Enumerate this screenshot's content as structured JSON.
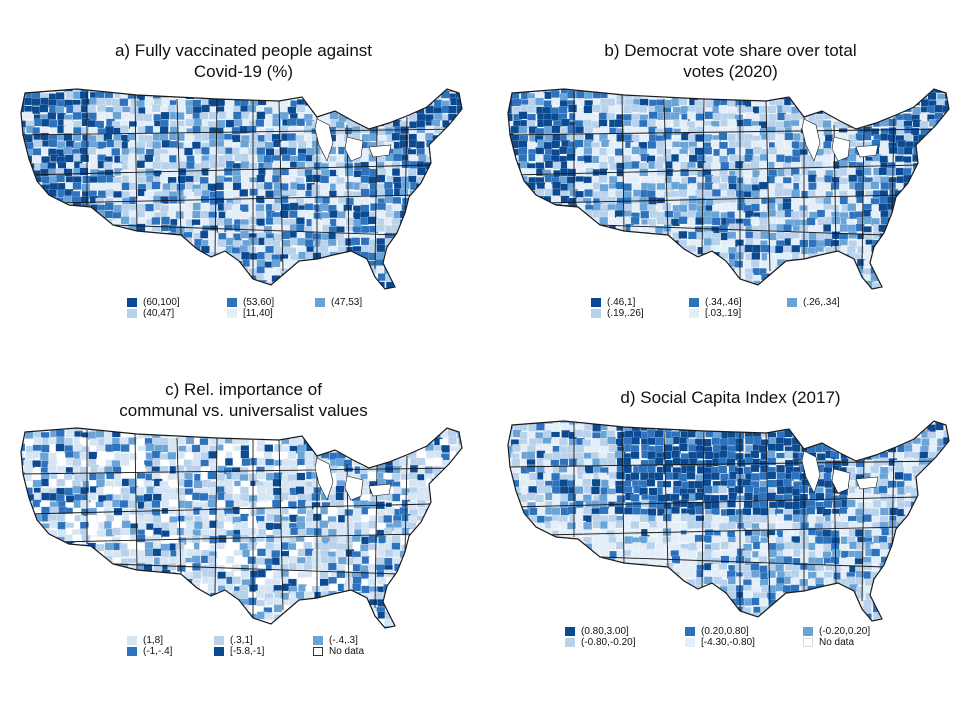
{
  "colors": {
    "c1": "#0b4a91",
    "c2": "#2c72bc",
    "c3": "#6aa3d6",
    "c4": "#b9d2ec",
    "c5": "#e4eef8",
    "c6": "#ffffff",
    "border": "#1a1a1a"
  },
  "panels": [
    {
      "id": "a",
      "title_lines": [
        "a) Fully vaccinated people against",
        "Covid-19 (%)"
      ],
      "legend": [
        {
          "label": "(60,100]",
          "color": "#0b4a91"
        },
        {
          "label": "(53,60]",
          "color": "#2c72bc"
        },
        {
          "label": "(47,53]",
          "color": "#6aa3d6"
        },
        {
          "label": "(40,47]",
          "color": "#b9d2ec"
        },
        {
          "label": "[11,40]",
          "color": "#e4eef8"
        }
      ]
    },
    {
      "id": "b",
      "title_lines": [
        "b) Democrat vote share over total",
        "votes (2020)"
      ],
      "legend": [
        {
          "label": "(.46,1]",
          "color": "#0b4a91"
        },
        {
          "label": "(.34,.46]",
          "color": "#2c72bc"
        },
        {
          "label": "(.26,.34]",
          "color": "#6aa3d6"
        },
        {
          "label": "(.19,.26]",
          "color": "#b9d2ec"
        },
        {
          "label": "[.03,.19]",
          "color": "#e4eef8"
        }
      ]
    },
    {
      "id": "c",
      "title_lines": [
        "c) Rel. importance of",
        "communal vs. universalist values"
      ],
      "legend": [
        {
          "label": "(1,8]",
          "color": "#d6e5f4"
        },
        {
          "label": "(.3,1]",
          "color": "#b9d2ec"
        },
        {
          "label": "(-.4,.3]",
          "color": "#6aa3d6"
        },
        {
          "label": "(-1,-.4]",
          "color": "#2c72bc"
        },
        {
          "label": "[-5.8,-1]",
          "color": "#0b4a91"
        },
        {
          "label": "No data",
          "color": "#ffffff"
        }
      ]
    },
    {
      "id": "d",
      "title_lines": [
        "d) Social Capita Index (2017)"
      ],
      "legend": [
        {
          "label": "(0.80,3.00]",
          "color": "#0b4a91"
        },
        {
          "label": "(0.20,0.80]",
          "color": "#2c72bc"
        },
        {
          "label": "(-0.20,0.20]",
          "color": "#6aa3d6"
        },
        {
          "label": "(-0.80,-0.20]",
          "color": "#b9d2ec"
        },
        {
          "label": "[-4.30,-0.80]",
          "color": "#e4eef8"
        },
        {
          "label": "No data",
          "color": "#ffffff"
        }
      ]
    }
  ]
}
